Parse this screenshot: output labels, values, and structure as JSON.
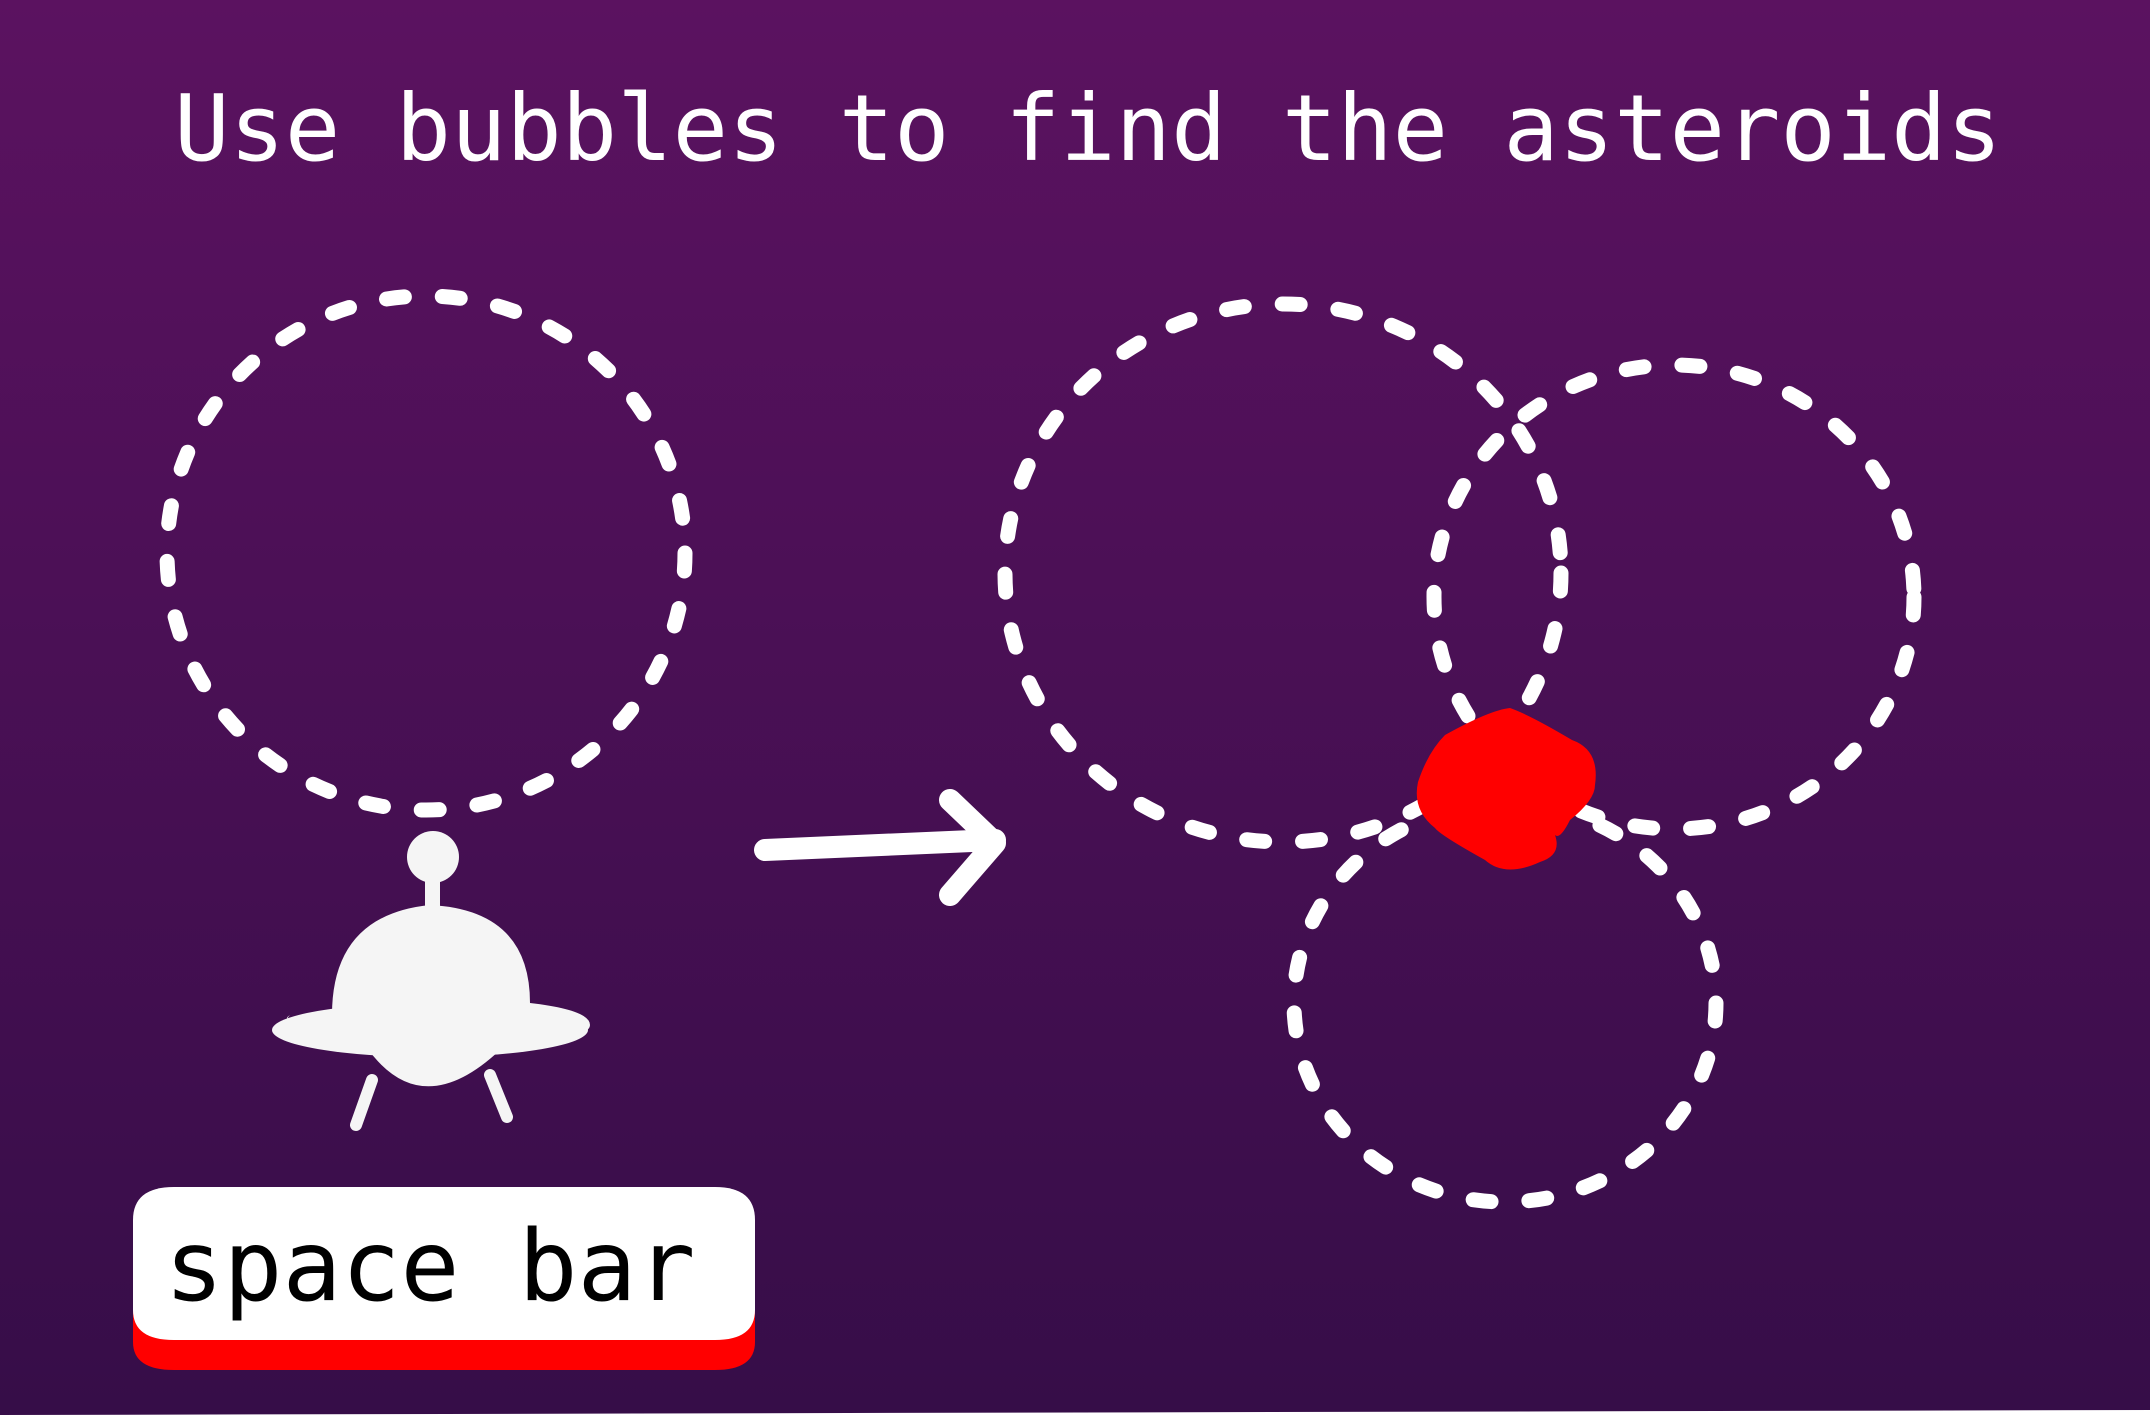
{
  "instruction": {
    "title": "Use bubbles to find the asteroids"
  },
  "controls": {
    "key_label": "space bar",
    "key_accent_color": "#ff0000"
  },
  "scene": {
    "background_top_color": "#5b1260",
    "background_bottom_color": "#360d48",
    "bubble_color": "#ffffff",
    "asteroid_color": "#ff0000",
    "ship_color": "#f5f5f5",
    "ship_icon": "ufo-ship-icon",
    "arrow_icon": "arrow-right-icon"
  }
}
